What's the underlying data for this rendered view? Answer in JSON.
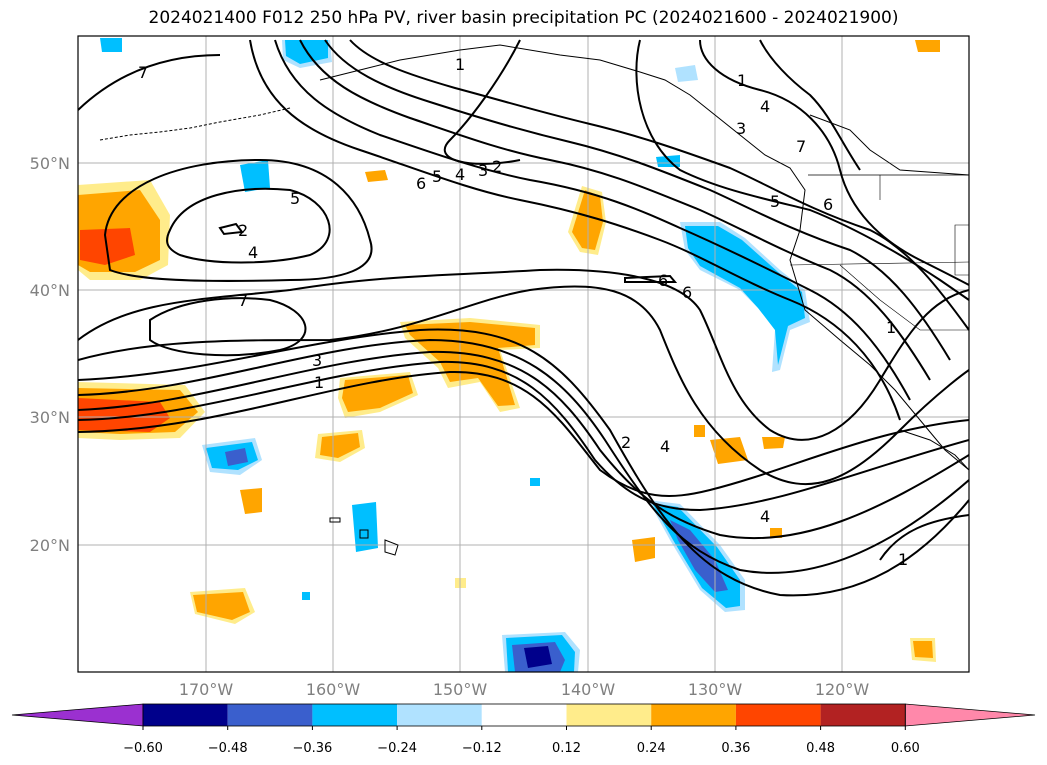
{
  "title": "2024021400 F012 250 hPa PV, river basin precipitation PC (2024021600 - 2024021900)",
  "lat_labels": [
    "50°N",
    "40°N",
    "30°N",
    "20°N"
  ],
  "lon_labels": [
    "170°W",
    "160°W",
    "150°W",
    "140°W",
    "130°W",
    "120°W"
  ],
  "colorbar": {
    "colors": [
      "#9b30d0",
      "#00008b",
      "#3a5fcd",
      "#00bfff",
      "#b0e2ff",
      "#ffffff",
      "#ffec8b",
      "#ffa500",
      "#ff4500",
      "#b22222",
      "#ff88aa"
    ],
    "labels": [
      "−0.60",
      "−0.48",
      "−0.36",
      "−0.24",
      "−0.12",
      "0.12",
      "0.24",
      "0.36",
      "0.48",
      "0.60"
    ]
  },
  "contour_labels": [
    "7",
    "1",
    "3",
    "5",
    "4",
    "6",
    "2",
    "5",
    "4",
    "3",
    "2",
    "6",
    "1",
    "4",
    "7",
    "5",
    "6",
    "6",
    "1",
    "2",
    "4",
    "4",
    "1",
    "7",
    "3",
    "1"
  ]
}
